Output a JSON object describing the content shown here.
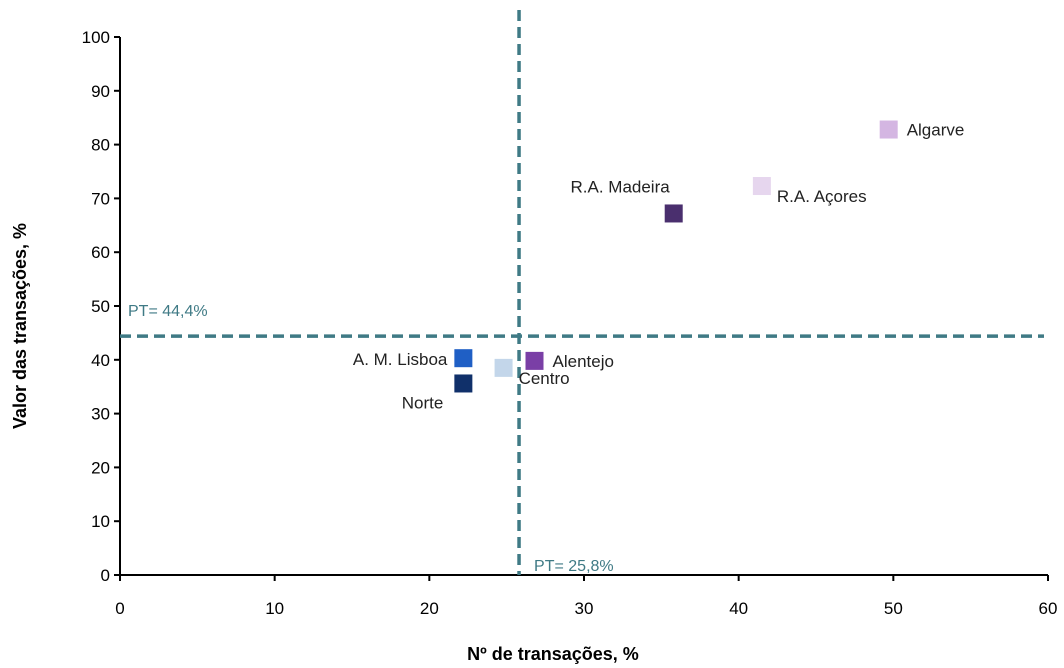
{
  "chart_data": {
    "type": "scatter",
    "title": "",
    "xlabel": "Nº de transações, %",
    "ylabel": "Valor das transações, %",
    "xlim": [
      0,
      60
    ],
    "ylim": [
      0,
      100
    ],
    "xticks": [
      "0",
      "10",
      "20",
      "30",
      "40",
      "50",
      "60"
    ],
    "yticks": [
      "0",
      "10",
      "20",
      "30",
      "40",
      "50",
      "60",
      "70",
      "80",
      "90",
      "100"
    ],
    "grid": false,
    "reference_lines": [
      {
        "orientation": "vertical",
        "value": 25.8,
        "label": "PT= 25,8%",
        "color": "#3f7a85"
      },
      {
        "orientation": "horizontal",
        "value": 44.4,
        "label": "PT= 44,4%",
        "color": "#3f7a85"
      }
    ],
    "points": [
      {
        "label": "Algarve",
        "x": 49.7,
        "y": 82.8,
        "color": "#d4b6e2",
        "label_side": "right"
      },
      {
        "label": "R.A. Açores",
        "x": 41.5,
        "y": 72.3,
        "color": "#e6d6ee",
        "label_side": "below-right"
      },
      {
        "label": "R.A. Madeira",
        "x": 35.8,
        "y": 67.2,
        "color": "#4a2f6e",
        "label_side": "above-left"
      },
      {
        "label": "Alentejo",
        "x": 26.8,
        "y": 39.8,
        "color": "#7a3fa6",
        "label_side": "right"
      },
      {
        "label": "A. M. Lisboa",
        "x": 22.2,
        "y": 40.3,
        "color": "#1f5fc5",
        "label_side": "left"
      },
      {
        "label": "Centro",
        "x": 24.8,
        "y": 38.5,
        "color": "#c3d6ea",
        "label_side": "below-right"
      },
      {
        "label": "Norte",
        "x": 22.2,
        "y": 35.6,
        "color": "#10306a",
        "label_side": "below-left"
      }
    ]
  }
}
